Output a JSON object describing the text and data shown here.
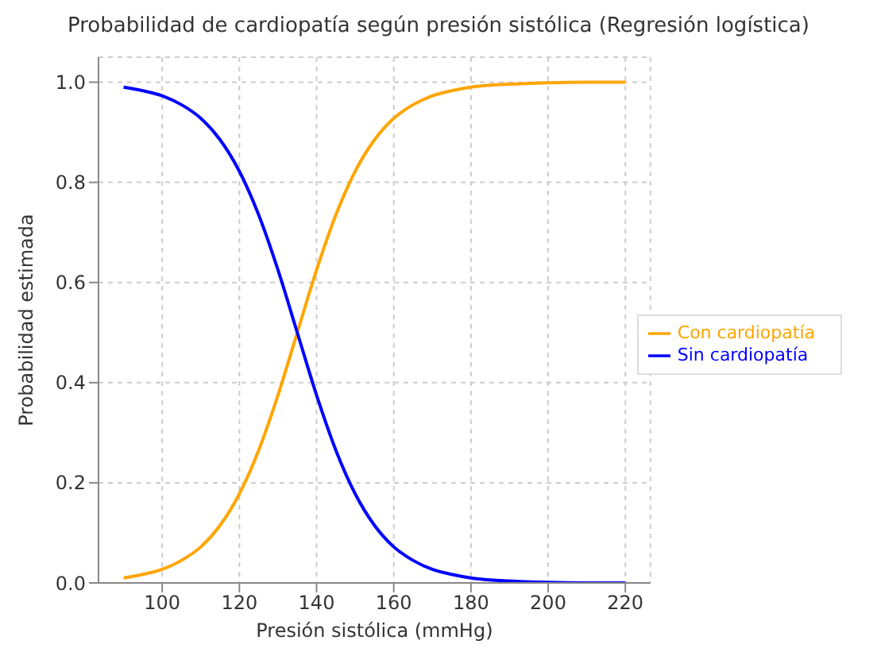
{
  "chart_data": {
    "type": "line",
    "title": "Probabilidad de cardiopatía según presión sistólica (Regresión logística)",
    "xlabel": "Presión sistólica (mmHg)",
    "ylabel": "Probabilidad estimada",
    "x": [
      90,
      95,
      100,
      105,
      110,
      115,
      120,
      125,
      130,
      135,
      140,
      145,
      150,
      155,
      160,
      165,
      170,
      175,
      180,
      185,
      190,
      200,
      210,
      220
    ],
    "series": [
      {
        "name": "Con cardiopatía",
        "color": "#ffa500",
        "values": [
          0.01,
          0.017,
          0.027,
          0.045,
          0.072,
          0.115,
          0.178,
          0.265,
          0.375,
          0.5,
          0.625,
          0.735,
          0.822,
          0.885,
          0.928,
          0.955,
          0.973,
          0.983,
          0.99,
          0.994,
          0.996,
          0.999,
          1.0,
          1.0
        ]
      },
      {
        "name": "Sin cardiopatía",
        "color": "#0000ff",
        "values": [
          0.99,
          0.983,
          0.973,
          0.955,
          0.928,
          0.885,
          0.822,
          0.735,
          0.625,
          0.5,
          0.375,
          0.265,
          0.178,
          0.115,
          0.072,
          0.045,
          0.027,
          0.017,
          0.01,
          0.006,
          0.004,
          0.001,
          0.0,
          0.0
        ]
      }
    ],
    "xlim": [
      83.5,
      226.5
    ],
    "xticks": [
      100,
      120,
      140,
      160,
      180,
      200,
      220
    ],
    "ylim": [
      0,
      1.05
    ],
    "yticks": [
      {
        "value": 0,
        "label": "0.0"
      },
      {
        "value": 0.2,
        "label": "0.2"
      },
      {
        "value": 0.4,
        "label": "0.4"
      },
      {
        "value": 0.6,
        "label": "0.6"
      },
      {
        "value": 0.8,
        "label": "0.8"
      },
      {
        "value": 1,
        "label": "1.0"
      }
    ],
    "grid": true,
    "legend": "right",
    "marker": "none",
    "line_style": "solid"
  }
}
